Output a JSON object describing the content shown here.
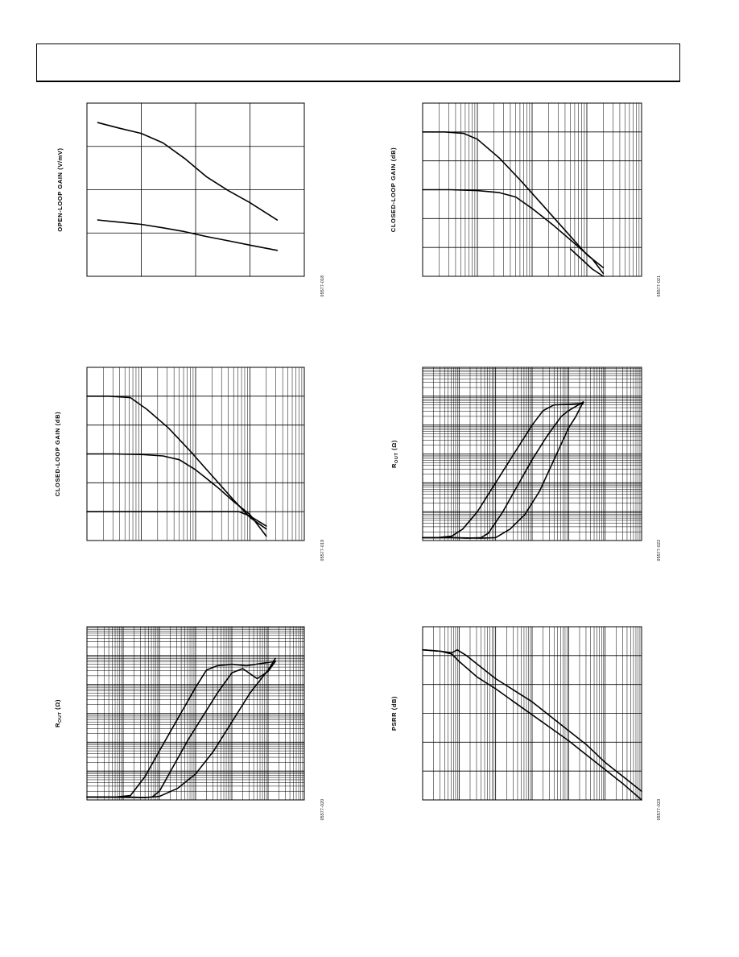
{
  "page": {
    "header_text": ""
  },
  "colors": {
    "ink": "#000000",
    "background": "#ffffff"
  },
  "chart_data": [
    {
      "id": "chart-1",
      "type": "line",
      "title": "",
      "xlabel": "",
      "ylabel": "OPEN-LOOP GAIN (V/mV)",
      "figure_id": "05577-018",
      "x_scale": "linear",
      "y_scale": "linear",
      "grid": true,
      "xlim": [
        0,
        4
      ],
      "ylim": [
        0,
        4
      ],
      "series": [
        {
          "x": [
            0.2,
            0.6,
            1.0,
            1.4,
            1.8,
            2.2,
            2.6,
            3.0,
            3.5
          ],
          "y": [
            3.55,
            3.42,
            3.3,
            3.08,
            2.72,
            2.3,
            1.98,
            1.7,
            1.3
          ]
        },
        {
          "x": [
            0.2,
            0.6,
            1.0,
            1.4,
            1.8,
            2.2,
            2.6,
            3.0,
            3.5
          ],
          "y": [
            1.3,
            1.25,
            1.2,
            1.12,
            1.03,
            0.92,
            0.82,
            0.72,
            0.6
          ]
        }
      ]
    },
    {
      "id": "chart-2",
      "type": "line",
      "title": "",
      "xlabel": "",
      "ylabel": "CLOSED-LOOP GAIN (dB)",
      "figure_id": "05577-021",
      "x_scale": "log",
      "y_scale": "linear",
      "grid": true,
      "xlim": [
        0,
        4
      ],
      "ylim": [
        0,
        6
      ],
      "series": [
        {
          "x": [
            0,
            0.4,
            0.75,
            1.0,
            1.4,
            1.8,
            2.2,
            2.6,
            3.0,
            3.3
          ],
          "y": [
            5.0,
            5.0,
            4.95,
            4.75,
            4.1,
            3.3,
            2.45,
            1.6,
            0.75,
            0.3
          ]
        },
        {
          "x": [
            0,
            0.5,
            1.0,
            1.4,
            1.7,
            2.0,
            2.4,
            2.8,
            3.1,
            3.3
          ],
          "y": [
            3.0,
            3.0,
            2.97,
            2.9,
            2.75,
            2.35,
            1.75,
            1.1,
            0.6,
            0.1
          ]
        },
        {
          "x": [
            2.7,
            2.9,
            3.1,
            3.3
          ],
          "y": [
            0.95,
            0.6,
            0.25,
            0.0
          ]
        }
      ]
    },
    {
      "id": "chart-3",
      "type": "line",
      "title": "",
      "xlabel": "",
      "ylabel": "CLOSED-LOOP GAIN (dB)",
      "figure_id": "05577-019",
      "x_scale": "log",
      "y_scale": "linear",
      "grid": true,
      "xlim": [
        0,
        4
      ],
      "ylim": [
        0,
        6
      ],
      "series": [
        {
          "x": [
            0,
            0.4,
            0.8,
            1.1,
            1.5,
            1.9,
            2.3,
            2.7,
            3.0,
            3.3
          ],
          "y": [
            5.0,
            5.0,
            4.95,
            4.55,
            3.9,
            3.1,
            2.25,
            1.4,
            0.8,
            0.4
          ]
        },
        {
          "x": [
            0,
            0.5,
            1.0,
            1.4,
            1.7,
            2.0,
            2.4,
            2.7,
            3.0,
            3.3
          ],
          "y": [
            3.0,
            3.0,
            2.98,
            2.93,
            2.8,
            2.45,
            1.85,
            1.35,
            0.9,
            0.15
          ]
        },
        {
          "x": [
            0,
            0.5,
            1.0,
            1.5,
            2.0,
            2.4,
            2.8,
            3.0,
            3.3
          ],
          "y": [
            1.0,
            1.0,
            1.0,
            1.0,
            1.0,
            1.0,
            1.0,
            0.85,
            0.5
          ]
        }
      ]
    },
    {
      "id": "chart-4",
      "type": "line",
      "title": "",
      "xlabel": "",
      "ylabel": "R_OUT (Ω)",
      "ylabel_main": "R",
      "ylabel_sub": "OUT",
      "ylabel_unit": " (Ω)",
      "figure_id": "05577-022",
      "x_scale": "log",
      "y_scale": "log",
      "grid": true,
      "xlim": [
        0,
        6
      ],
      "ylim": [
        0,
        6
      ],
      "series": [
        {
          "x": [
            0,
            0.4,
            0.8,
            1.1,
            1.5,
            2.0,
            2.5,
            3.0,
            3.3,
            3.6,
            4.0,
            4.4
          ],
          "y": [
            0.1,
            0.1,
            0.15,
            0.4,
            1.0,
            2.0,
            3.0,
            4.0,
            4.5,
            4.7,
            4.72,
            4.75
          ]
        },
        {
          "x": [
            0,
            0.8,
            1.2,
            1.6,
            1.8,
            2.2,
            2.6,
            3.0,
            3.4,
            3.8,
            4.0,
            4.4
          ],
          "y": [
            0.1,
            0.1,
            0.08,
            0.1,
            0.25,
            1.0,
            1.9,
            2.8,
            3.6,
            4.3,
            4.5,
            4.8
          ]
        },
        {
          "x": [
            0,
            0.8,
            1.6,
            2.0,
            2.4,
            2.8,
            3.2,
            3.6,
            4.0,
            4.2,
            4.4
          ],
          "y": [
            0.1,
            0.1,
            0.08,
            0.1,
            0.4,
            0.9,
            1.7,
            2.8,
            3.9,
            4.3,
            4.8
          ]
        }
      ]
    },
    {
      "id": "chart-5",
      "type": "line",
      "title": "",
      "xlabel": "",
      "ylabel": "R_OUT (Ω)",
      "ylabel_main": "R",
      "ylabel_sub": "OUT",
      "ylabel_unit": " (Ω)",
      "figure_id": "05577-020",
      "x_scale": "log",
      "y_scale": "log",
      "grid": true,
      "xlim": [
        0,
        6
      ],
      "ylim": [
        0,
        6
      ],
      "series": [
        {
          "x": [
            0,
            0.8,
            1.2,
            1.6,
            2.0,
            2.5,
            3.0,
            3.3,
            3.6,
            4.0,
            4.4,
            5.2
          ],
          "y": [
            0.1,
            0.1,
            0.15,
            0.8,
            1.7,
            2.8,
            3.9,
            4.5,
            4.65,
            4.7,
            4.65,
            4.8
          ]
        },
        {
          "x": [
            0,
            1.2,
            1.6,
            1.8,
            2.0,
            2.4,
            2.8,
            3.2,
            3.6,
            4.0,
            4.3,
            4.7,
            5.0,
            5.2
          ],
          "y": [
            0.1,
            0.1,
            0.08,
            0.1,
            0.3,
            1.2,
            2.1,
            2.9,
            3.7,
            4.4,
            4.55,
            4.2,
            4.45,
            4.8
          ]
        },
        {
          "x": [
            0,
            1.6,
            2.0,
            2.5,
            3.0,
            3.5,
            4.0,
            4.5,
            5.0,
            5.2
          ],
          "y": [
            0.1,
            0.08,
            0.12,
            0.4,
            0.9,
            1.7,
            2.7,
            3.7,
            4.5,
            4.9
          ]
        }
      ]
    },
    {
      "id": "chart-6",
      "type": "line",
      "title": "",
      "xlabel": "",
      "ylabel": "PSRR (dB)",
      "figure_id": "05577-023",
      "x_scale": "log",
      "y_scale": "linear",
      "grid": true,
      "xlim": [
        0,
        6
      ],
      "ylim": [
        0,
        6
      ],
      "series": [
        {
          "x": [
            0,
            0.5,
            0.8,
            0.95,
            1.2,
            1.5,
            2.0,
            2.5,
            3.0,
            3.5,
            4.0,
            4.5,
            5.0,
            5.5,
            6.0
          ],
          "y": [
            5.2,
            5.15,
            5.1,
            5.2,
            5.0,
            4.7,
            4.2,
            3.8,
            3.4,
            2.9,
            2.4,
            1.9,
            1.3,
            0.8,
            0.3
          ]
        },
        {
          "x": [
            0,
            0.5,
            0.8,
            1.0,
            1.5,
            2.0,
            2.5,
            3.0,
            3.5,
            4.0,
            4.5,
            5.0,
            5.5,
            6.0
          ],
          "y": [
            5.2,
            5.15,
            5.05,
            4.8,
            4.25,
            3.85,
            3.4,
            2.95,
            2.5,
            2.05,
            1.55,
            1.05,
            0.55,
            0.0
          ]
        }
      ]
    }
  ]
}
